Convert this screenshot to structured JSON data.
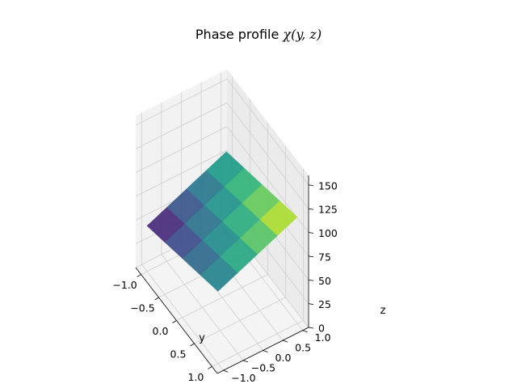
{
  "chart_data": {
    "type": "surface",
    "title_text": "Phase profile ",
    "title_math": "χ(y, z)",
    "xlabel": "y",
    "ylabel": "z",
    "zlabel": "",
    "xlim": [
      -1.15,
      1.15
    ],
    "ylim": [
      -1.15,
      1.15
    ],
    "zlim": [
      0,
      160
    ],
    "x_ticks": [
      -1.0,
      -0.5,
      0.0,
      0.5,
      1.0
    ],
    "x_tick_labels": [
      "−1.0",
      "−0.5",
      "0.0",
      "0.5",
      "1.0"
    ],
    "y_ticks": [
      -1.0,
      -0.5,
      0.0,
      0.5,
      1.0
    ],
    "y_tick_labels": [
      "−1.0",
      "−0.5",
      "0.0",
      "0.5",
      "1.0"
    ],
    "z_ticks": [
      0,
      25,
      50,
      75,
      100,
      125,
      150
    ],
    "z_tick_labels": [
      "0",
      "25",
      "50",
      "75",
      "100",
      "125",
      "150"
    ],
    "grid": true,
    "colormap": "viridis",
    "surface": {
      "y": [
        -1.0,
        -0.5,
        0.0,
        0.5,
        1.0
      ],
      "z": [
        -1.0,
        -0.5,
        0.0,
        0.5,
        1.0
      ],
      "values": [
        [
          48,
          57,
          66,
          75,
          84
        ],
        [
          55,
          64,
          73,
          82,
          91
        ],
        [
          62,
          71,
          80,
          89,
          98
        ],
        [
          69,
          78,
          87,
          96,
          105
        ],
        [
          76,
          85,
          94,
          103,
          112
        ]
      ]
    }
  }
}
